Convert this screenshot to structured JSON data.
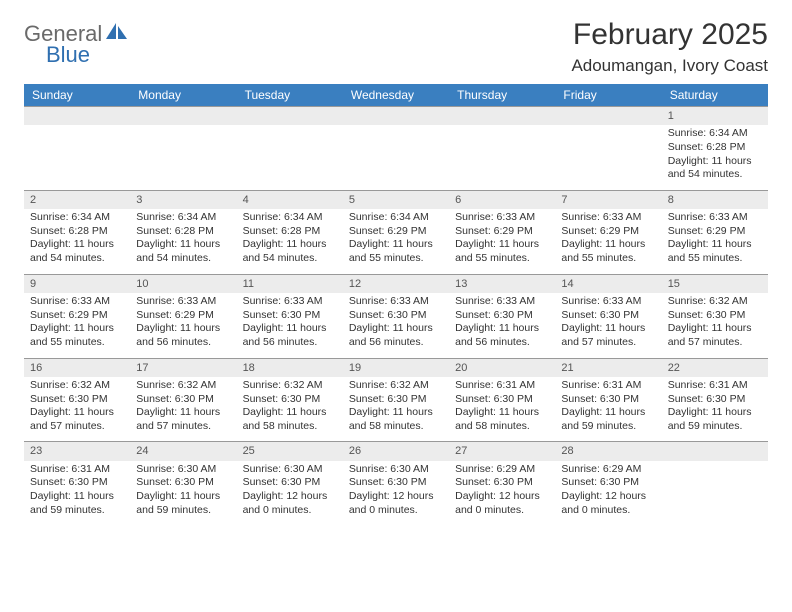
{
  "logo": {
    "general": "General",
    "blue": "Blue"
  },
  "title": "February 2025",
  "location": "Adoumangan, Ivory Coast",
  "colors": {
    "header_bg": "#3a7fc0",
    "header_text": "#ffffff",
    "daynum_bg": "#ececec",
    "daynum_border": "#999999",
    "text": "#333333",
    "logo_gray": "#6a6a6a",
    "logo_blue": "#2f6fb0",
    "page_bg": "#ffffff"
  },
  "weekday_headers": [
    "Sunday",
    "Monday",
    "Tuesday",
    "Wednesday",
    "Thursday",
    "Friday",
    "Saturday"
  ],
  "weeks": [
    {
      "nums": [
        "",
        "",
        "",
        "",
        "",
        "",
        "1"
      ],
      "cells": [
        "",
        "",
        "",
        "",
        "",
        "",
        "Sunrise: 6:34 AM\nSunset: 6:28 PM\nDaylight: 11 hours and 54 minutes."
      ]
    },
    {
      "nums": [
        "2",
        "3",
        "4",
        "5",
        "6",
        "7",
        "8"
      ],
      "cells": [
        "Sunrise: 6:34 AM\nSunset: 6:28 PM\nDaylight: 11 hours and 54 minutes.",
        "Sunrise: 6:34 AM\nSunset: 6:28 PM\nDaylight: 11 hours and 54 minutes.",
        "Sunrise: 6:34 AM\nSunset: 6:28 PM\nDaylight: 11 hours and 54 minutes.",
        "Sunrise: 6:34 AM\nSunset: 6:29 PM\nDaylight: 11 hours and 55 minutes.",
        "Sunrise: 6:33 AM\nSunset: 6:29 PM\nDaylight: 11 hours and 55 minutes.",
        "Sunrise: 6:33 AM\nSunset: 6:29 PM\nDaylight: 11 hours and 55 minutes.",
        "Sunrise: 6:33 AM\nSunset: 6:29 PM\nDaylight: 11 hours and 55 minutes."
      ]
    },
    {
      "nums": [
        "9",
        "10",
        "11",
        "12",
        "13",
        "14",
        "15"
      ],
      "cells": [
        "Sunrise: 6:33 AM\nSunset: 6:29 PM\nDaylight: 11 hours and 55 minutes.",
        "Sunrise: 6:33 AM\nSunset: 6:29 PM\nDaylight: 11 hours and 56 minutes.",
        "Sunrise: 6:33 AM\nSunset: 6:30 PM\nDaylight: 11 hours and 56 minutes.",
        "Sunrise: 6:33 AM\nSunset: 6:30 PM\nDaylight: 11 hours and 56 minutes.",
        "Sunrise: 6:33 AM\nSunset: 6:30 PM\nDaylight: 11 hours and 56 minutes.",
        "Sunrise: 6:33 AM\nSunset: 6:30 PM\nDaylight: 11 hours and 57 minutes.",
        "Sunrise: 6:32 AM\nSunset: 6:30 PM\nDaylight: 11 hours and 57 minutes."
      ]
    },
    {
      "nums": [
        "16",
        "17",
        "18",
        "19",
        "20",
        "21",
        "22"
      ],
      "cells": [
        "Sunrise: 6:32 AM\nSunset: 6:30 PM\nDaylight: 11 hours and 57 minutes.",
        "Sunrise: 6:32 AM\nSunset: 6:30 PM\nDaylight: 11 hours and 57 minutes.",
        "Sunrise: 6:32 AM\nSunset: 6:30 PM\nDaylight: 11 hours and 58 minutes.",
        "Sunrise: 6:32 AM\nSunset: 6:30 PM\nDaylight: 11 hours and 58 minutes.",
        "Sunrise: 6:31 AM\nSunset: 6:30 PM\nDaylight: 11 hours and 58 minutes.",
        "Sunrise: 6:31 AM\nSunset: 6:30 PM\nDaylight: 11 hours and 59 minutes.",
        "Sunrise: 6:31 AM\nSunset: 6:30 PM\nDaylight: 11 hours and 59 minutes."
      ]
    },
    {
      "nums": [
        "23",
        "24",
        "25",
        "26",
        "27",
        "28",
        ""
      ],
      "cells": [
        "Sunrise: 6:31 AM\nSunset: 6:30 PM\nDaylight: 11 hours and 59 minutes.",
        "Sunrise: 6:30 AM\nSunset: 6:30 PM\nDaylight: 11 hours and 59 minutes.",
        "Sunrise: 6:30 AM\nSunset: 6:30 PM\nDaylight: 12 hours and 0 minutes.",
        "Sunrise: 6:30 AM\nSunset: 6:30 PM\nDaylight: 12 hours and 0 minutes.",
        "Sunrise: 6:29 AM\nSunset: 6:30 PM\nDaylight: 12 hours and 0 minutes.",
        "Sunrise: 6:29 AM\nSunset: 6:30 PM\nDaylight: 12 hours and 0 minutes.",
        ""
      ]
    }
  ]
}
